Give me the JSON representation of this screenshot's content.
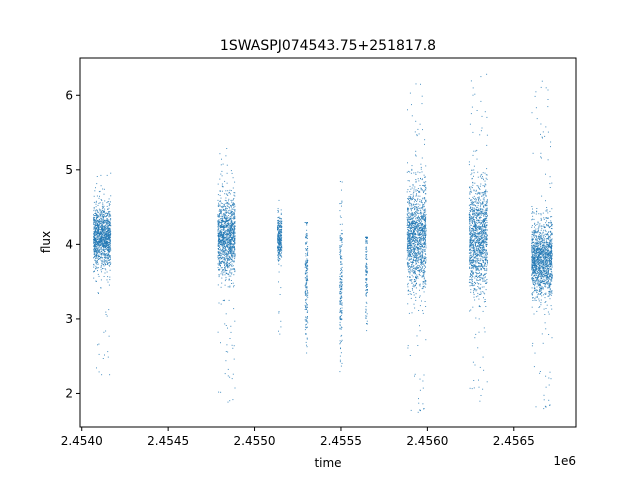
{
  "chart_data": {
    "type": "scatter",
    "title": "1SWASPJ074543.75+251817.8",
    "xlabel": "time",
    "ylabel": "flux",
    "x_offset_label": "1e6",
    "xlim": [
      2453990,
      2456860
    ],
    "ylim": [
      1.55,
      6.5
    ],
    "x_ticks": [
      2454000,
      2454500,
      2455000,
      2455500,
      2456000,
      2456500
    ],
    "x_tick_labels": [
      "2.4540",
      "2.4545",
      "2.4550",
      "2.4555",
      "2.4560",
      "2.4565"
    ],
    "y_ticks": [
      2,
      3,
      4,
      5,
      6
    ],
    "y_tick_labels": [
      "2",
      "3",
      "4",
      "5",
      "6"
    ],
    "grid": false,
    "marker_color": "#1f77b4",
    "seasons": [
      {
        "x_start": 2454065,
        "x_end": 2454165,
        "center": 4.1,
        "spread": 0.2,
        "low": 2.25,
        "high": 5.0
      },
      {
        "x_start": 2454785,
        "x_end": 2454885,
        "center": 4.1,
        "spread": 0.25,
        "low": 1.85,
        "high": 5.3
      },
      {
        "x_start": 2455130,
        "x_end": 2455155,
        "center": 4.1,
        "spread": 0.15,
        "low": 2.7,
        "high": 4.6
      },
      {
        "x_start": 2455290,
        "x_end": 2455305,
        "center": 3.6,
        "spread": 0.4,
        "low": 2.55,
        "high": 4.3
      },
      {
        "x_start": 2455490,
        "x_end": 2455505,
        "center": 3.6,
        "spread": 0.5,
        "low": 2.3,
        "high": 4.85
      },
      {
        "x_start": 2455640,
        "x_end": 2455650,
        "center": 3.7,
        "spread": 0.35,
        "low": 2.85,
        "high": 4.1
      },
      {
        "x_start": 2455880,
        "x_end": 2455990,
        "center": 4.1,
        "spread": 0.35,
        "low": 1.7,
        "high": 6.3
      },
      {
        "x_start": 2456240,
        "x_end": 2456345,
        "center": 4.1,
        "spread": 0.35,
        "low": 1.85,
        "high": 6.3
      },
      {
        "x_start": 2456600,
        "x_end": 2456720,
        "center": 3.8,
        "spread": 0.25,
        "low": 1.75,
        "high": 6.25
      }
    ]
  }
}
